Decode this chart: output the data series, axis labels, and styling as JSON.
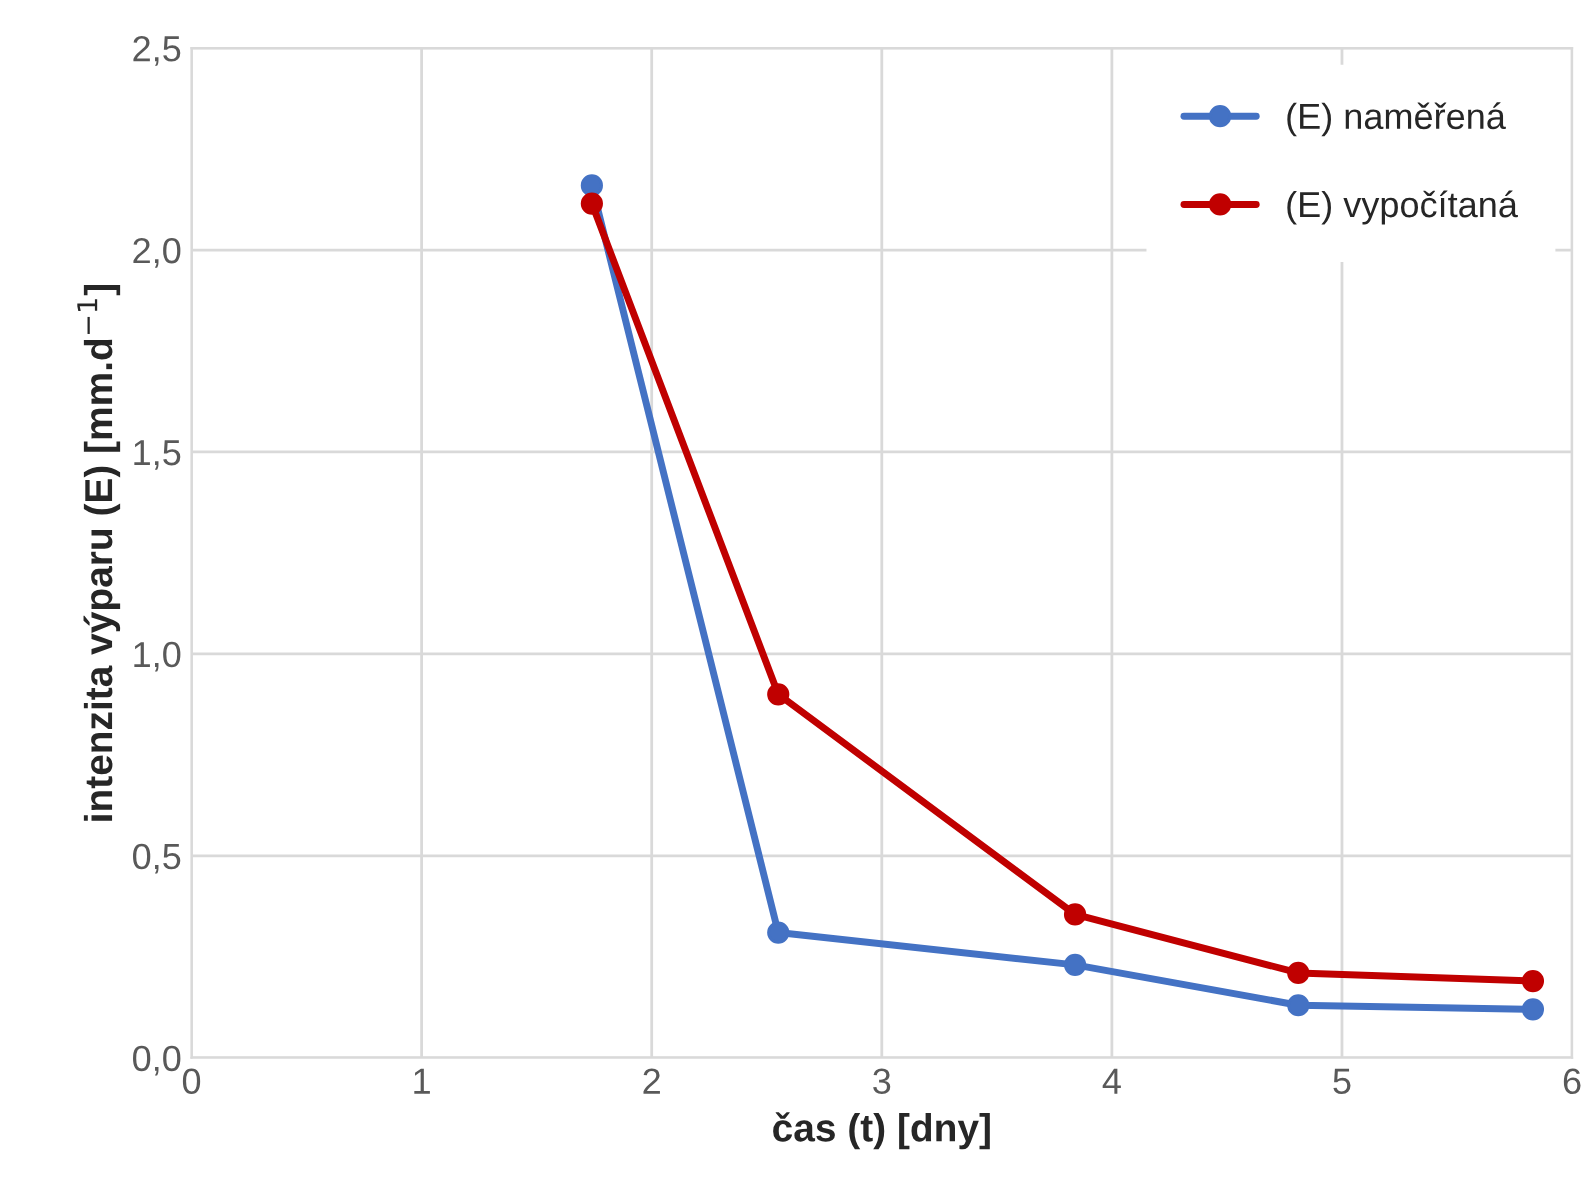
{
  "chart_data": {
    "type": "line",
    "xlabel": "čas (t) [dny]",
    "ylabel": "intenzita výparu (E) [mm.d$^{−1}$]",
    "xlim": [
      0,
      6
    ],
    "xticks": [
      0,
      1,
      2,
      3,
      4,
      5,
      6
    ],
    "ylim": [
      0,
      2.5
    ],
    "yticks": [
      {
        "value": 0,
        "label": "0,0"
      },
      {
        "value": 0.5,
        "label": "0,5"
      },
      {
        "value": 1,
        "label": "1,0"
      },
      {
        "value": 1.5,
        "label": "1,5"
      },
      {
        "value": 2,
        "label": "2,0"
      },
      {
        "value": 2.5,
        "label": "2,5"
      }
    ],
    "grid": true,
    "legend": "top right",
    "marker": "circle",
    "line_style": "solid",
    "series": [
      {
        "name": "(E) naměřená",
        "color": "#4472c4",
        "x": [
          1.74,
          2.55,
          3.84,
          4.81,
          5.83
        ],
        "values": [
          2.16,
          0.31,
          0.23,
          0.13,
          0.12
        ]
      },
      {
        "name": "(E) vypočítaná",
        "color": "#c00000",
        "x": [
          1.74,
          2.55,
          3.84,
          4.81,
          5.83
        ],
        "values": [
          2.115,
          0.9,
          0.355,
          0.21,
          0.19
        ]
      }
    ]
  }
}
